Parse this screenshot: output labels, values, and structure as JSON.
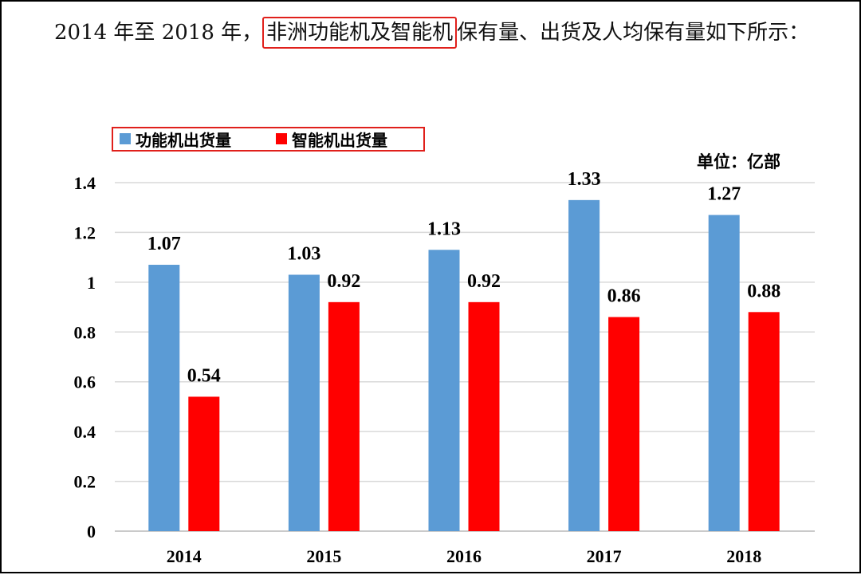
{
  "intro": {
    "before": "2014 年至 2018 年，",
    "highlight": "非洲功能机及智能机",
    "after": "保有量、出货及人均保有量如下所示："
  },
  "chart_data": {
    "type": "bar",
    "categories": [
      "2014",
      "2015",
      "2016",
      "2017",
      "2018"
    ],
    "series": [
      {
        "name": "功能机出货量",
        "color": "#5b9bd5",
        "values": [
          1.07,
          1.03,
          1.13,
          1.33,
          1.27
        ]
      },
      {
        "name": "智能机出货量",
        "color": "#ff0000",
        "values": [
          0.54,
          0.92,
          0.92,
          0.86,
          0.88
        ]
      }
    ],
    "data_labels": [
      [
        "1.07",
        "1.03",
        "1.13",
        "1.33",
        "1.27"
      ],
      [
        "0.54",
        "0.92",
        "0.92",
        "0.86",
        "0.88"
      ]
    ],
    "yticks": [
      "0",
      "0.2",
      "0.4",
      "0.6",
      "0.8",
      "1",
      "1.2",
      "1.4"
    ],
    "ylim": [
      0,
      1.4
    ],
    "unit_label": "单位：亿部",
    "legend_position": "top-left",
    "grid": true
  }
}
